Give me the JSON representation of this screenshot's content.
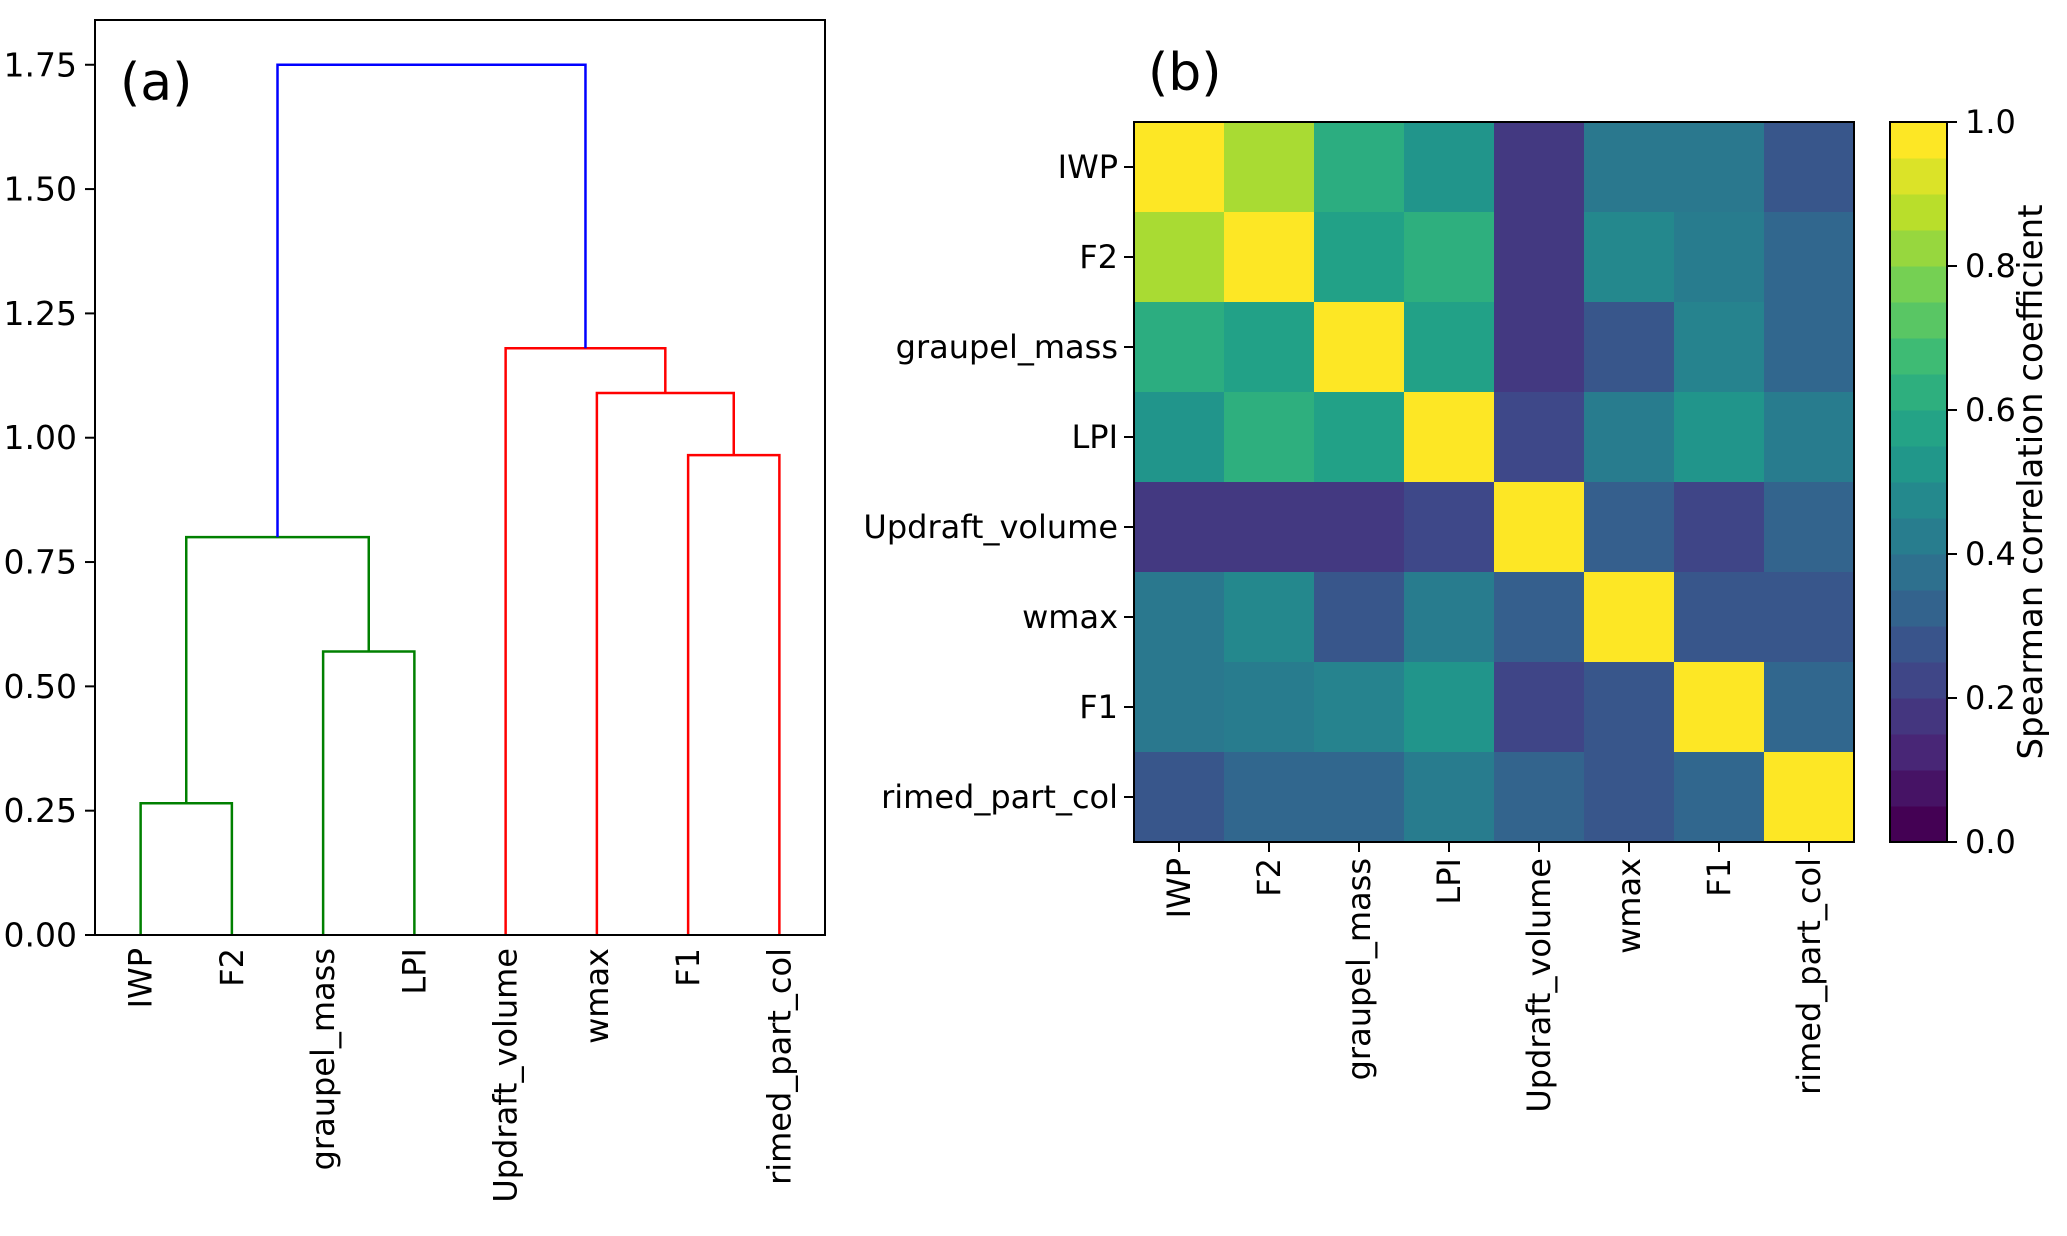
{
  "panels": {
    "a_label": "(a)",
    "b_label": "(b)"
  },
  "colors": {
    "background": "#ffffff",
    "axis": "#000000",
    "cluster_green": "#008000",
    "cluster_red": "#ff0000",
    "cluster_blue": "#0000ff"
  },
  "viridis_anchors": [
    "#440154",
    "#482878",
    "#3e4989",
    "#31688e",
    "#26828e",
    "#1f9e89",
    "#35b779",
    "#6ece58",
    "#b5de2b",
    "#fde725"
  ],
  "chart_data": [
    {
      "type": "dendrogram",
      "title": "(a)",
      "leaves": [
        "IWP",
        "F2",
        "graupel_mass",
        "LPI",
        "Updraft_volume",
        "wmax",
        "F1",
        "rimed_part_col"
      ],
      "leaf_positions": [
        5,
        15,
        25,
        35,
        45,
        55,
        65,
        75
      ],
      "x_range": [
        0,
        80
      ],
      "ylim": [
        0,
        1.84
      ],
      "yticks": [
        0,
        0.25,
        0.5,
        0.75,
        1.0,
        1.25,
        1.5,
        1.75
      ],
      "ytick_labels": [
        "0.00",
        "0.25",
        "0.50",
        "0.75",
        "1.00",
        "1.25",
        "1.50",
        "1.75"
      ],
      "links": [
        {
          "merge": "IWP+F2",
          "x1": 5,
          "h1": 0,
          "x2": 15,
          "h2": 0,
          "top": 0.265,
          "color": "#008000"
        },
        {
          "merge": "graupel_mass+LPI",
          "x1": 25,
          "h1": 0,
          "x2": 35,
          "h2": 0,
          "top": 0.57,
          "color": "#008000"
        },
        {
          "merge": "(IWP,F2)+(graupel_mass,LPI)",
          "x1": 10,
          "h1": 0.265,
          "x2": 30,
          "h2": 0.57,
          "top": 0.8,
          "color": "#008000"
        },
        {
          "merge": "F1+rimed_part_col",
          "x1": 65,
          "h1": 0,
          "x2": 75,
          "h2": 0,
          "top": 0.965,
          "color": "#ff0000"
        },
        {
          "merge": "wmax+(F1,rimed_part_col)",
          "x1": 55,
          "h1": 0,
          "x2": 70,
          "h2": 0.965,
          "top": 1.09,
          "color": "#ff0000"
        },
        {
          "merge": "Updraft_volume+(wmax,F1,rimed_part_col)",
          "x1": 45,
          "h1": 0,
          "x2": 62.5,
          "h2": 1.09,
          "top": 1.18,
          "color": "#ff0000"
        },
        {
          "merge": "green_cluster+red_cluster",
          "x1": 20,
          "h1": 0.8,
          "x2": 53.75,
          "h2": 1.18,
          "top": 1.75,
          "color": "#0000ff"
        }
      ]
    },
    {
      "type": "heatmap",
      "title": "(b)",
      "categories": [
        "IWP",
        "F2",
        "graupel_mass",
        "LPI",
        "Updraft_volume",
        "wmax",
        "F1",
        "rimed_part_col"
      ],
      "matrix": [
        [
          1.0,
          0.87,
          0.62,
          0.52,
          0.17,
          0.4,
          0.4,
          0.27
        ],
        [
          0.87,
          1.0,
          0.57,
          0.63,
          0.17,
          0.47,
          0.42,
          0.33
        ],
        [
          0.62,
          0.57,
          1.0,
          0.57,
          0.17,
          0.27,
          0.45,
          0.33
        ],
        [
          0.52,
          0.63,
          0.57,
          1.0,
          0.22,
          0.42,
          0.52,
          0.42
        ],
        [
          0.17,
          0.17,
          0.17,
          0.22,
          1.0,
          0.3,
          0.21,
          0.32
        ],
        [
          0.4,
          0.47,
          0.27,
          0.42,
          0.3,
          1.0,
          0.27,
          0.27
        ],
        [
          0.4,
          0.42,
          0.45,
          0.52,
          0.21,
          0.27,
          1.0,
          0.33
        ],
        [
          0.27,
          0.33,
          0.33,
          0.42,
          0.32,
          0.27,
          0.33,
          1.0
        ]
      ],
      "vmin": 0,
      "vmax": 1,
      "levels": 20,
      "colormap": "viridis",
      "colorbar": {
        "label": "Spearman correlation coefficient",
        "ticks": [
          0,
          0.2,
          0.4,
          0.6,
          0.8,
          1.0
        ],
        "tick_labels": [
          "0.0",
          "0.2",
          "0.4",
          "0.6",
          "0.8",
          "1.0"
        ]
      }
    }
  ]
}
